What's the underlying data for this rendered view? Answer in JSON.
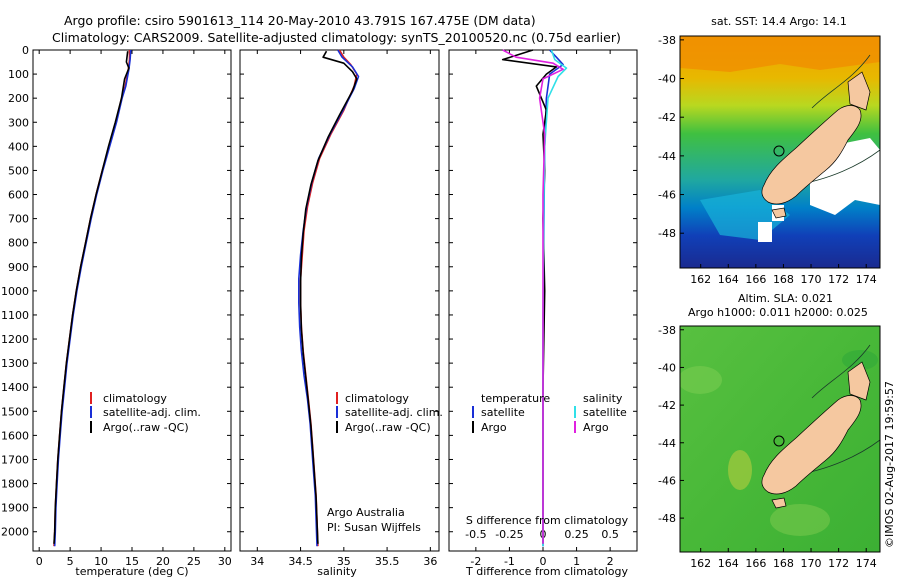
{
  "header": {
    "title_line1": "Argo profile: csiro 5901613_114 20-May-2010 43.791S 167.475E (DM data)",
    "title_line2": "Climatology: CARS2009. Satellite-adjusted climatology: synTS_20100520.nc (0.75d earlier)"
  },
  "colors": {
    "climatology": "#e02020",
    "satellite": "#1a2fd6",
    "argo": "#000000",
    "sat_salinity": "#30e0e8",
    "argo_salinity": "#e020e0",
    "land": "#f5c8a0"
  },
  "chart_data": [
    {
      "type": "line",
      "xlabel": "temperature (deg C)",
      "ylabel": "",
      "xlim": [
        -1,
        31
      ],
      "ylim": [
        2080,
        0
      ],
      "x_ticks": [
        "0",
        "5",
        "10",
        "15",
        "20",
        "25",
        "30"
      ],
      "y_ticks": [
        "0",
        "100",
        "200",
        "300",
        "400",
        "500",
        "600",
        "700",
        "800",
        "900",
        "1000",
        "1100",
        "1200",
        "1300",
        "1400",
        "1500",
        "1600",
        "1700",
        "1800",
        "1900",
        "2000"
      ],
      "legend": [
        "climatology",
        "satellite-adj. clim.",
        "Argo(..raw -QC)"
      ],
      "series": [
        {
          "name": "climatology",
          "color": "#e02020",
          "points": [
            [
              14.6,
              0
            ],
            [
              14.6,
              40
            ],
            [
              14.4,
              80
            ],
            [
              13.9,
              150
            ],
            [
              13.3,
              200
            ],
            [
              12.4,
              300
            ],
            [
              11.3,
              400
            ],
            [
              10.2,
              500
            ],
            [
              9.2,
              600
            ],
            [
              8.3,
              700
            ],
            [
              7.5,
              800
            ],
            [
              6.7,
              900
            ],
            [
              6.0,
              1000
            ],
            [
              5.4,
              1100
            ],
            [
              4.9,
              1200
            ],
            [
              4.4,
              1300
            ],
            [
              4.0,
              1400
            ],
            [
              3.6,
              1500
            ],
            [
              3.3,
              1600
            ],
            [
              3.0,
              1700
            ],
            [
              2.8,
              1800
            ],
            [
              2.6,
              1900
            ],
            [
              2.5,
              2000
            ],
            [
              2.4,
              2060
            ]
          ]
        },
        {
          "name": "satellite-adj. clim.",
          "color": "#1a2fd6",
          "points": [
            [
              14.8,
              0
            ],
            [
              14.7,
              40
            ],
            [
              14.5,
              80
            ],
            [
              14.0,
              150
            ],
            [
              13.4,
              200
            ],
            [
              12.5,
              300
            ],
            [
              11.4,
              400
            ],
            [
              10.3,
              500
            ],
            [
              9.3,
              600
            ],
            [
              8.4,
              700
            ],
            [
              7.6,
              800
            ],
            [
              6.8,
              900
            ],
            [
              6.1,
              1000
            ],
            [
              5.5,
              1100
            ],
            [
              5.0,
              1200
            ],
            [
              4.5,
              1300
            ],
            [
              4.1,
              1400
            ],
            [
              3.7,
              1500
            ],
            [
              3.4,
              1600
            ],
            [
              3.1,
              1700
            ],
            [
              2.9,
              1800
            ],
            [
              2.7,
              1900
            ],
            [
              2.6,
              2000
            ],
            [
              2.5,
              2060
            ]
          ]
        },
        {
          "name": "Argo(..raw -QC)",
          "color": "#000000",
          "points": [
            [
              14.3,
              5
            ],
            [
              14.1,
              50
            ],
            [
              14.5,
              75
            ],
            [
              13.8,
              120
            ],
            [
              13.3,
              200
            ],
            [
              12.3,
              300
            ],
            [
              11.2,
              400
            ],
            [
              10.2,
              500
            ],
            [
              9.2,
              600
            ],
            [
              8.3,
              700
            ],
            [
              7.5,
              800
            ],
            [
              6.7,
              900
            ],
            [
              6.0,
              1000
            ],
            [
              5.4,
              1100
            ],
            [
              4.9,
              1200
            ],
            [
              4.4,
              1300
            ],
            [
              4.0,
              1400
            ],
            [
              3.6,
              1500
            ],
            [
              3.3,
              1600
            ],
            [
              3.0,
              1700
            ],
            [
              2.8,
              1800
            ],
            [
              2.6,
              1900
            ],
            [
              2.5,
              2000
            ],
            [
              2.4,
              2050
            ]
          ]
        }
      ]
    },
    {
      "type": "line",
      "xlabel": "salinity",
      "xlim": [
        33.8,
        36.1
      ],
      "ylim": [
        2080,
        0
      ],
      "x_ticks": [
        "34",
        "34.5",
        "35",
        "35.5",
        "36"
      ],
      "legend": [
        "climatology",
        "satellite-adj. clim.",
        "Argo(..raw -QC)"
      ],
      "annotation": [
        "Argo Australia",
        "PI: Susan Wijffels"
      ],
      "series": [
        {
          "name": "climatology",
          "color": "#e02020",
          "points": [
            [
              34.95,
              0
            ],
            [
              35.0,
              30
            ],
            [
              35.08,
              60
            ],
            [
              35.15,
              100
            ],
            [
              35.12,
              150
            ],
            [
              35.0,
              250
            ],
            [
              34.85,
              350
            ],
            [
              34.72,
              450
            ],
            [
              34.64,
              550
            ],
            [
              34.58,
              650
            ],
            [
              34.54,
              750
            ],
            [
              34.52,
              850
            ],
            [
              34.5,
              950
            ],
            [
              34.5,
              1050
            ],
            [
              34.51,
              1150
            ],
            [
              34.53,
              1250
            ],
            [
              34.56,
              1350
            ],
            [
              34.59,
              1450
            ],
            [
              34.62,
              1550
            ],
            [
              34.64,
              1650
            ],
            [
              34.66,
              1750
            ],
            [
              34.68,
              1850
            ],
            [
              34.69,
              1950
            ],
            [
              34.7,
              2060
            ]
          ]
        },
        {
          "name": "satellite-adj. clim.",
          "color": "#1a2fd6",
          "points": [
            [
              34.93,
              0
            ],
            [
              34.98,
              30
            ],
            [
              35.1,
              70
            ],
            [
              35.17,
              110
            ],
            [
              35.12,
              160
            ],
            [
              34.99,
              250
            ],
            [
              34.84,
              350
            ],
            [
              34.71,
              450
            ],
            [
              34.63,
              550
            ],
            [
              34.57,
              650
            ],
            [
              34.53,
              750
            ],
            [
              34.5,
              850
            ],
            [
              34.48,
              950
            ],
            [
              34.48,
              1050
            ],
            [
              34.49,
              1150
            ],
            [
              34.51,
              1250
            ],
            [
              34.54,
              1350
            ],
            [
              34.58,
              1450
            ],
            [
              34.61,
              1550
            ],
            [
              34.63,
              1650
            ],
            [
              34.65,
              1750
            ],
            [
              34.67,
              1850
            ],
            [
              34.68,
              1950
            ],
            [
              34.69,
              2060
            ]
          ]
        },
        {
          "name": "Argo(..raw -QC)",
          "color": "#000000",
          "points": [
            [
              34.8,
              5
            ],
            [
              34.76,
              30
            ],
            [
              35.0,
              55
            ],
            [
              35.1,
              90
            ],
            [
              35.15,
              120
            ],
            [
              35.1,
              170
            ],
            [
              34.95,
              270
            ],
            [
              34.82,
              360
            ],
            [
              34.7,
              460
            ],
            [
              34.62,
              560
            ],
            [
              34.56,
              660
            ],
            [
              34.53,
              760
            ],
            [
              34.51,
              860
            ],
            [
              34.5,
              960
            ],
            [
              34.5,
              1060
            ],
            [
              34.51,
              1160
            ],
            [
              34.53,
              1260
            ],
            [
              34.56,
              1360
            ],
            [
              34.59,
              1460
            ],
            [
              34.62,
              1560
            ],
            [
              34.64,
              1660
            ],
            [
              34.66,
              1760
            ],
            [
              34.68,
              1860
            ],
            [
              34.69,
              1960
            ],
            [
              34.7,
              2050
            ]
          ]
        }
      ]
    },
    {
      "type": "line",
      "xlabel": "T difference from climatology",
      "top_axis_label": "S difference from climatology",
      "xlim": [
        -2.8,
        2.8
      ],
      "ylim": [
        2080,
        0
      ],
      "x_ticks": [
        "-2",
        "-1",
        "0",
        "1",
        "2"
      ],
      "top_ticks": [
        "-0.5",
        "-0.25",
        "0",
        "0.25",
        "0.5"
      ],
      "legend_temperature": {
        "title": "temperature",
        "items": [
          "satellite",
          "Argo"
        ]
      },
      "legend_salinity": {
        "title": "salinity",
        "items": [
          "satellite",
          "Argo"
        ]
      },
      "series": [
        {
          "name": "satellite",
          "color": "#1a2fd6",
          "points": [
            [
              0.2,
              0
            ],
            [
              0.4,
              30
            ],
            [
              0.6,
              60
            ],
            [
              0.2,
              100
            ],
            [
              0.1,
              200
            ],
            [
              0.05,
              400
            ],
            [
              0.02,
              800
            ],
            [
              0.0,
              1200
            ],
            [
              0.0,
              2060
            ]
          ]
        },
        {
          "name": "Argo",
          "color": "#000000",
          "points": [
            [
              -0.3,
              0
            ],
            [
              -1.2,
              40
            ],
            [
              0.4,
              70
            ],
            [
              0.1,
              100
            ],
            [
              -0.2,
              150
            ],
            [
              0.1,
              250
            ],
            [
              0.0,
              350
            ],
            [
              0.05,
              500
            ],
            [
              0.0,
              700
            ],
            [
              0.05,
              1000
            ],
            [
              0.0,
              1400
            ],
            [
              0.0,
              2050
            ]
          ]
        },
        {
          "name": "satellite",
          "color": "#30e0e8",
          "points": [
            [
              0.25,
              0
            ],
            [
              0.35,
              40
            ],
            [
              0.7,
              75
            ],
            [
              0.45,
              110
            ],
            [
              0.15,
              200
            ],
            [
              0.05,
              400
            ],
            [
              0.02,
              700
            ],
            [
              0.0,
              1100
            ],
            [
              0.0,
              2060
            ]
          ]
        },
        {
          "name": "Argo",
          "color": "#e020e0",
          "points": [
            [
              -1.2,
              0
            ],
            [
              -0.8,
              30
            ],
            [
              0.3,
              55
            ],
            [
              0.6,
              80
            ],
            [
              0.0,
              120
            ],
            [
              -0.1,
              200
            ],
            [
              0.05,
              350
            ],
            [
              0.0,
              600
            ],
            [
              0.0,
              900
            ],
            [
              0.0,
              1300
            ],
            [
              0.0,
              1800
            ],
            [
              0.0,
              2050
            ]
          ]
        }
      ]
    }
  ],
  "maps": [
    {
      "title": "sat. SST: 14.4  Argo: 14.1",
      "x_ticks": [
        "162",
        "164",
        "166",
        "168",
        "170",
        "172",
        "174"
      ],
      "y_ticks": [
        "-38",
        "-40",
        "-42",
        "-44",
        "-46",
        "-48"
      ],
      "lon_range": [
        160.5,
        175
      ],
      "lat_range": [
        -37.8,
        -49.8
      ],
      "argo_position": [
        167.475,
        -43.791
      ]
    },
    {
      "title_line1": "Altim. SLA: 0.021",
      "title_line2": "Argo h1000: 0.011 h2000: 0.025",
      "x_ticks": [
        "162",
        "164",
        "166",
        "168",
        "170",
        "172",
        "174"
      ],
      "y_ticks": [
        "-38",
        "-40",
        "-42",
        "-44",
        "-46",
        "-48"
      ],
      "lon_range": [
        160.5,
        175
      ],
      "lat_range": [
        -37.8,
        -49.8
      ],
      "argo_position": [
        167.475,
        -43.791
      ]
    }
  ],
  "watermark": "©IMOS 02-Aug-2017 19:59:57"
}
